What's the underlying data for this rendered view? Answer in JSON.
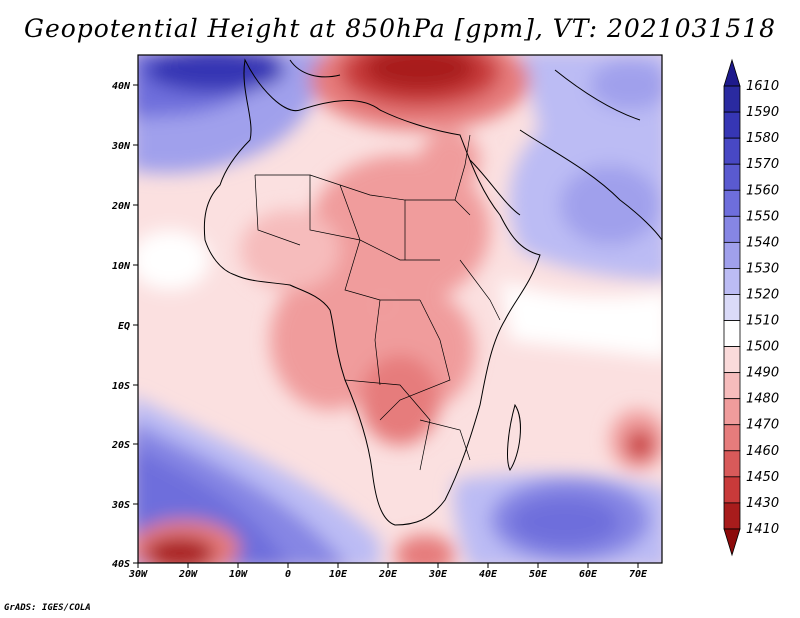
{
  "title": "Geopotential Height at 850hPa [gpm], VT: 2021031518",
  "credit": "GrADS: IGES/COLA",
  "map": {
    "lon_range": [
      -30,
      75
    ],
    "lat_range": [
      -40,
      45
    ],
    "lat_ticks": [
      "40N",
      "30N",
      "20N",
      "10N",
      "EQ",
      "10S",
      "20S",
      "30S",
      "40S"
    ],
    "lon_ticks": [
      "30W",
      "20W",
      "10W",
      "0",
      "10E",
      "20E",
      "30E",
      "40E",
      "50E",
      "60E",
      "70E"
    ]
  },
  "colorbar": {
    "levels": [
      "1610",
      "1590",
      "1580",
      "1570",
      "1560",
      "1550",
      "1540",
      "1530",
      "1520",
      "1510",
      "1500",
      "1490",
      "1480",
      "1470",
      "1460",
      "1450",
      "1430",
      "1410"
    ],
    "colors": [
      "#1e1a8c",
      "#2a2aa0",
      "#3636b4",
      "#4848c4",
      "#5a5ad0",
      "#6e6edc",
      "#8686e4",
      "#a0a0ec",
      "#bcbcf4",
      "#dadaf8",
      "#ffffff",
      "#fadada",
      "#f6bcbc",
      "#f09c9c",
      "#e67c7c",
      "#d85a5a",
      "#c83a3a",
      "#a81c1c",
      "#8c0a0a"
    ]
  }
}
